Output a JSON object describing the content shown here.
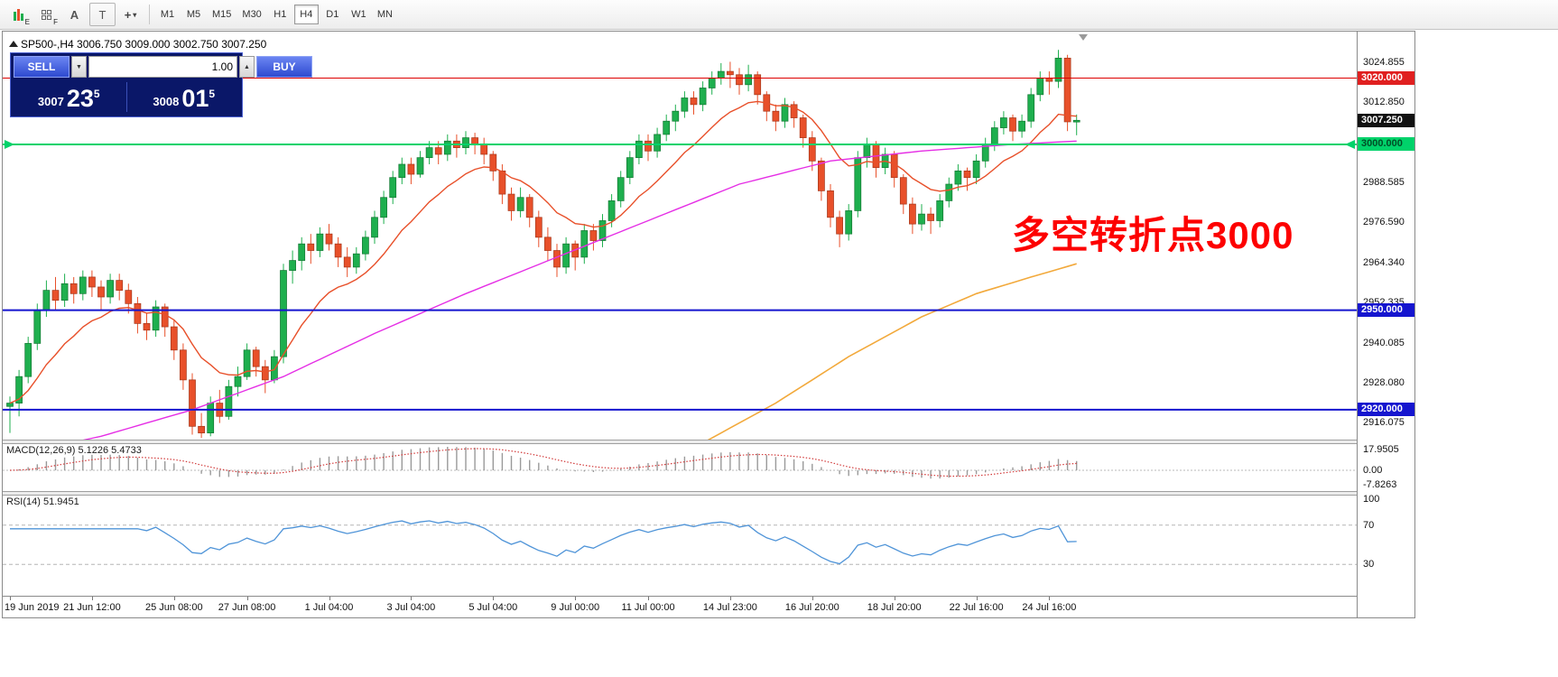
{
  "toolbar": {
    "icons": [
      {
        "name": "candlestick-style-icon",
        "sub": "E"
      },
      {
        "name": "grid-style-icon",
        "sub": "F"
      },
      {
        "name": "text-label-tool-icon",
        "glyph": "A"
      },
      {
        "name": "text-box-tool-icon",
        "glyph": "T"
      },
      {
        "name": "crosshair-tool-icon",
        "glyph": "+",
        "caret": "▾"
      }
    ],
    "timeframes": [
      "M1",
      "M5",
      "M15",
      "M30",
      "H1",
      "H4",
      "D1",
      "W1",
      "MN"
    ],
    "active_timeframe": "H4"
  },
  "chart": {
    "header_text": "SP500-,H4  3006.750 3009.000 3002.750 3007.250"
  },
  "one_click": {
    "sell_label": "SELL",
    "buy_label": "BUY",
    "lot": "1.00",
    "spin_down": "▼",
    "spin_up": "▲",
    "bid": {
      "main": "3007",
      "big": "23",
      "sup": "5"
    },
    "ask": {
      "main": "3008",
      "big": "01",
      "sup": "5"
    }
  },
  "annotation": {
    "text": "多空转折点3000",
    "color": "#fd0000"
  },
  "hlines": [
    {
      "price": 3020,
      "color": "#dd0000",
      "width": 1,
      "arrows": false
    },
    {
      "price": 3000,
      "color": "#00d26a",
      "width": 2,
      "arrows": true
    },
    {
      "price": 2950,
      "color": "#1515cf",
      "width": 2,
      "arrows": false
    },
    {
      "price": 2920,
      "color": "#1515cf",
      "width": 2,
      "arrows": false
    }
  ],
  "price_axis": {
    "labels": [
      {
        "text": "3024.855",
        "price": 3024.855
      },
      {
        "text": "3012.850",
        "price": 3012.85
      },
      {
        "text": "2988.585",
        "price": 2988.585
      },
      {
        "text": "2976.590",
        "price": 2976.59
      },
      {
        "text": "2964.340",
        "price": 2964.34
      },
      {
        "text": "2952.335",
        "price": 2952.335
      },
      {
        "text": "2940.085",
        "price": 2940.085
      },
      {
        "text": "2928.080",
        "price": 2928.08
      },
      {
        "text": "2916.075",
        "price": 2916.075
      }
    ],
    "tags": [
      {
        "text": "3020.000",
        "price": 3020.0,
        "bg": "#e02020",
        "fg": "#ffffff"
      },
      {
        "text": "3007.250",
        "price": 3007.25,
        "bg": "#111111",
        "fg": "#ffffff"
      },
      {
        "text": "3000.000",
        "price": 3000.0,
        "bg": "#00d26a",
        "fg": "#004d26"
      },
      {
        "text": "2950.000",
        "price": 2950.0,
        "bg": "#1515cf",
        "fg": "#ffffff"
      },
      {
        "text": "2920.000",
        "price": 2920.0,
        "bg": "#1515cf",
        "fg": "#ffffff"
      }
    ]
  },
  "macd": {
    "label": "MACD(12,26,9) 5.1226 5.4733",
    "axis": [
      "17.9505",
      "0.00",
      "-7.8263"
    ],
    "params": {
      "fast": 12,
      "slow": 26,
      "signal": 9
    }
  },
  "rsi": {
    "label": "RSI(14) 51.9451",
    "axis": [
      "100",
      "70",
      "30"
    ],
    "levels": [
      70,
      30
    ],
    "period": 14
  },
  "time_axis": {
    "labels": [
      {
        "text": "19 Jun 2019",
        "i": 0
      },
      {
        "text": "21 Jun 12:00",
        "i": 9
      },
      {
        "text": "25 Jun 08:00",
        "i": 18
      },
      {
        "text": "27 Jun 08:00",
        "i": 26
      },
      {
        "text": "1 Jul 04:00",
        "i": 35
      },
      {
        "text": "3 Jul 04:00",
        "i": 44
      },
      {
        "text": "5 Jul 04:00",
        "i": 53
      },
      {
        "text": "9 Jul 00:00",
        "i": 62
      },
      {
        "text": "11 Jul 00:00",
        "i": 70
      },
      {
        "text": "14 Jul 23:00",
        "i": 79
      },
      {
        "text": "16 Jul 20:00",
        "i": 88
      },
      {
        "text": "18 Jul 20:00",
        "i": 97
      },
      {
        "text": "22 Jul 16:00",
        "i": 106
      },
      {
        "text": "24 Jul 16:00",
        "i": 114
      }
    ]
  },
  "chart_data": {
    "type": "candlestick",
    "symbol": "SP500-",
    "timeframe": "H4",
    "title": "SP500- H4 candlestick chart with MACD and RSI",
    "price_range": [
      2911,
      3034
    ],
    "up_color": "#1eaf4e",
    "down_color": "#e8502a",
    "ma_fast_color": "#e8502a",
    "ma_magenta_color": "#e52ee5",
    "ma_orange_color": "#f2a93b",
    "ohlc": [
      [
        2921,
        2924,
        2913,
        2922
      ],
      [
        2922,
        2932,
        2918,
        2930
      ],
      [
        2930,
        2942,
        2928,
        2940
      ],
      [
        2940,
        2952,
        2938,
        2950
      ],
      [
        2950,
        2959,
        2948,
        2956
      ],
      [
        2956,
        2960,
        2950,
        2953
      ],
      [
        2953,
        2961,
        2951,
        2958
      ],
      [
        2958,
        2960,
        2952,
        2955
      ],
      [
        2955,
        2962,
        2953,
        2960
      ],
      [
        2960,
        2962,
        2954,
        2957
      ],
      [
        2957,
        2959,
        2950,
        2954
      ],
      [
        2954,
        2961,
        2952,
        2959
      ],
      [
        2959,
        2961,
        2953,
        2956
      ],
      [
        2956,
        2958,
        2949,
        2952
      ],
      [
        2952,
        2954,
        2943,
        2946
      ],
      [
        2946,
        2949,
        2941,
        2944
      ],
      [
        2944,
        2953,
        2942,
        2951
      ],
      [
        2951,
        2952,
        2942,
        2945
      ],
      [
        2945,
        2947,
        2935,
        2938
      ],
      [
        2938,
        2940,
        2926,
        2929
      ],
      [
        2929,
        2931,
        2912.5,
        2915
      ],
      [
        2915,
        2919,
        2911.5,
        2913
      ],
      [
        2913,
        2924,
        2912,
        2922
      ],
      [
        2922,
        2926,
        2916,
        2918
      ],
      [
        2918,
        2929,
        2917,
        2927
      ],
      [
        2927,
        2933,
        2924,
        2930
      ],
      [
        2930,
        2940,
        2929,
        2938
      ],
      [
        2938,
        2939,
        2930,
        2933
      ],
      [
        2933,
        2935,
        2925,
        2929
      ],
      [
        2929,
        2938,
        2928,
        2936
      ],
      [
        2936,
        2964,
        2934,
        2962
      ],
      [
        2962,
        2968,
        2958,
        2965
      ],
      [
        2965,
        2972,
        2962,
        2970
      ],
      [
        2970,
        2973,
        2964,
        2968
      ],
      [
        2968,
        2975,
        2966,
        2973
      ],
      [
        2973,
        2976,
        2968,
        2970
      ],
      [
        2970,
        2972,
        2963,
        2966
      ],
      [
        2966,
        2969,
        2960,
        2963
      ],
      [
        2963,
        2969,
        2961,
        2967
      ],
      [
        2967,
        2974,
        2965,
        2972
      ],
      [
        2972,
        2980,
        2970,
        2978
      ],
      [
        2978,
        2986,
        2976,
        2984
      ],
      [
        2984,
        2992,
        2982,
        2990
      ],
      [
        2990,
        2996,
        2988,
        2994
      ],
      [
        2994,
        2996,
        2988,
        2991
      ],
      [
        2991,
        2998,
        2990,
        2996
      ],
      [
        2996,
        3001,
        2994,
        2999
      ],
      [
        2999,
        3001,
        2994,
        2997
      ],
      [
        2997,
        3003,
        2995,
        3001
      ],
      [
        3001,
        3003,
        2996,
        2999
      ],
      [
        2999,
        3004,
        2997,
        3002
      ],
      [
        3002,
        3003.5,
        2997,
        3000
      ],
      [
        3000,
        3002,
        2994,
        2997
      ],
      [
        2997,
        2998,
        2989,
        2992
      ],
      [
        2992,
        2994,
        2982,
        2985
      ],
      [
        2985,
        2987,
        2977,
        2980
      ],
      [
        2980,
        2987,
        2978,
        2984
      ],
      [
        2984,
        2985,
        2975,
        2978
      ],
      [
        2978,
        2980,
        2969,
        2972
      ],
      [
        2972,
        2975,
        2965,
        2968
      ],
      [
        2968,
        2970,
        2960,
        2963
      ],
      [
        2963,
        2972,
        2961,
        2970
      ],
      [
        2970,
        2971,
        2962,
        2966
      ],
      [
        2966,
        2976,
        2964,
        2974
      ],
      [
        2974,
        2976,
        2968,
        2971
      ],
      [
        2971,
        2979,
        2969,
        2977
      ],
      [
        2977,
        2985,
        2975,
        2983
      ],
      [
        2983,
        2992,
        2981,
        2990
      ],
      [
        2990,
        2998,
        2988,
        2996
      ],
      [
        2996,
        3003,
        2994,
        3001
      ],
      [
        3001,
        3003,
        2995,
        2998
      ],
      [
        2998,
        3005,
        2996,
        3003
      ],
      [
        3003,
        3009,
        3001,
        3007
      ],
      [
        3007,
        3012,
        3004,
        3010
      ],
      [
        3010,
        3016,
        3008,
        3014
      ],
      [
        3014,
        3016,
        3009,
        3012
      ],
      [
        3012,
        3019,
        3010,
        3017
      ],
      [
        3017,
        3022,
        3015,
        3020
      ],
      [
        3020,
        3024.5,
        3018,
        3022
      ],
      [
        3022,
        3024.9,
        3017,
        3021
      ],
      [
        3021,
        3023,
        3015,
        3018
      ],
      [
        3018,
        3024,
        3016,
        3021
      ],
      [
        3021,
        3022,
        3012,
        3015
      ],
      [
        3015,
        3016,
        3007,
        3010
      ],
      [
        3010,
        3012,
        3004,
        3007
      ],
      [
        3007,
        3014,
        3005,
        3012
      ],
      [
        3012,
        3013,
        3005,
        3008
      ],
      [
        3008,
        3009,
        2999,
        3002
      ],
      [
        3002,
        3004,
        2992,
        2995
      ],
      [
        2995,
        2996,
        2983,
        2986
      ],
      [
        2986,
        2988,
        2975,
        2978
      ],
      [
        2978,
        2980,
        2969,
        2973
      ],
      [
        2973,
        2982,
        2971,
        2980
      ],
      [
        2980,
        2998,
        2978,
        2996
      ],
      [
        2996,
        3002,
        2993,
        3000
      ],
      [
        3000,
        3001,
        2990,
        2993
      ],
      [
        2993,
        2999,
        2991,
        2997
      ],
      [
        2997,
        2998,
        2987,
        2990
      ],
      [
        2990,
        2991,
        2979,
        2982
      ],
      [
        2982,
        2984,
        2973,
        2976
      ],
      [
        2976,
        2982,
        2974,
        2979
      ],
      [
        2979,
        2981,
        2973,
        2977
      ],
      [
        2977,
        2985,
        2975,
        2983
      ],
      [
        2983,
        2990,
        2981,
        2988
      ],
      [
        2988,
        2994,
        2986,
        2992
      ],
      [
        2992,
        2993,
        2986,
        2990
      ],
      [
        2990,
        2997,
        2988,
        2995
      ],
      [
        2995,
        3002,
        2993,
        3000
      ],
      [
        3000,
        3007,
        2998,
        3005
      ],
      [
        3005,
        3010,
        3003,
        3008
      ],
      [
        3008,
        3009,
        3001,
        3004
      ],
      [
        3004,
        3009,
        3002,
        3007
      ],
      [
        3007,
        3017,
        3005,
        3015
      ],
      [
        3015,
        3022,
        3013,
        3020
      ],
      [
        3020,
        3022,
        3015,
        3019
      ],
      [
        3019,
        3028.5,
        3017,
        3026
      ],
      [
        3026,
        3027,
        3004,
        3006.8
      ],
      [
        3006.75,
        3009,
        3002.75,
        3007.25
      ]
    ],
    "ma_magenta": [
      [
        0,
        2906
      ],
      [
        10,
        2912
      ],
      [
        20,
        2920
      ],
      [
        30,
        2930
      ],
      [
        40,
        2943
      ],
      [
        50,
        2955
      ],
      [
        60,
        2966
      ],
      [
        70,
        2977
      ],
      [
        80,
        2988
      ],
      [
        90,
        2995
      ],
      [
        100,
        2998
      ],
      [
        110,
        3000
      ],
      [
        117,
        3001
      ]
    ],
    "ma_orange": [
      [
        76,
        2910
      ],
      [
        84,
        2922
      ],
      [
        92,
        2936
      ],
      [
        100,
        2948
      ],
      [
        106,
        2955
      ],
      [
        112,
        2960
      ],
      [
        117,
        2964
      ]
    ]
  }
}
